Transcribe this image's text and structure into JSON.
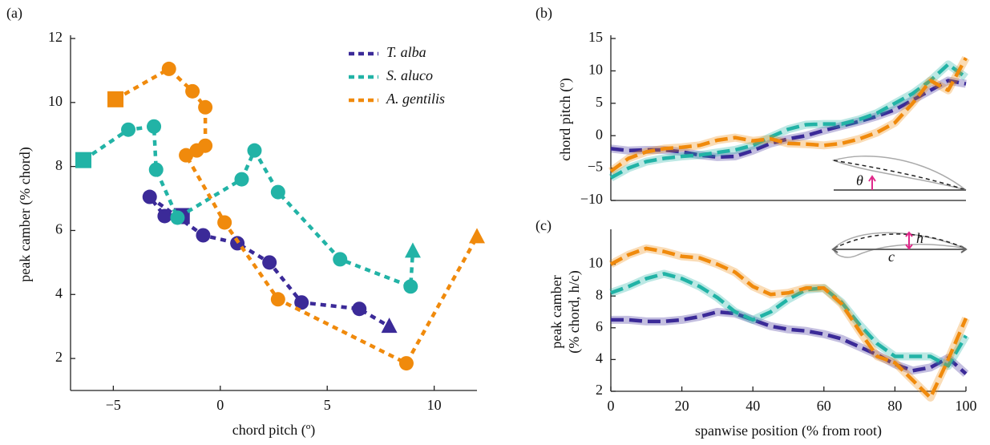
{
  "chart_data": [
    {
      "type": "scatter",
      "panel_label": "(a)",
      "xlabel": "chord pitch (º)",
      "ylabel": [
        "peak camber (% chord)"
      ],
      "xlim": [
        -7,
        12
      ],
      "ylim": [
        1,
        12
      ],
      "xticks": [
        {
          "value": -5,
          "label": "−5"
        },
        0,
        5,
        10
      ],
      "yticks": [
        2,
        4,
        6,
        8,
        10,
        12
      ],
      "legend": "upper right",
      "series": [
        {
          "name": "T. alba",
          "color": "#3b2a98",
          "x": [
            -1.8,
            -2.6,
            -3.3,
            -0.8,
            0.8,
            2.3,
            3.8,
            6.5,
            7.9
          ],
          "y": [
            6.45,
            6.45,
            7.05,
            5.85,
            5.6,
            5.0,
            3.75,
            3.55,
            3.0
          ],
          "marker": [
            "s",
            "o",
            "o",
            "o",
            "o",
            "o",
            "o",
            "o",
            "^"
          ]
        },
        {
          "name": "S. aluco",
          "color": "#22b3a6",
          "x": [
            -6.4,
            -4.3,
            -3.1,
            -3.0,
            -2.0,
            1.0,
            1.6,
            2.7,
            5.6,
            8.9,
            9.0
          ],
          "y": [
            8.2,
            9.15,
            9.25,
            7.9,
            6.4,
            7.6,
            8.5,
            7.2,
            5.1,
            4.25,
            5.35
          ],
          "marker": [
            "s",
            "o",
            "o",
            "o",
            "o",
            "o",
            "o",
            "o",
            "o",
            "o",
            "^"
          ]
        },
        {
          "name": "A. gentilis",
          "color": "#f08a0c",
          "x": [
            -4.9,
            -2.4,
            -1.3,
            -0.7,
            -0.7,
            -1.1,
            -1.6,
            0.2,
            2.7,
            8.7,
            12.0
          ],
          "y": [
            10.1,
            11.05,
            10.35,
            9.85,
            8.65,
            8.5,
            8.35,
            6.25,
            3.85,
            1.85,
            5.8
          ],
          "marker": [
            "s",
            "o",
            "o",
            "o",
            "o",
            "o",
            "o",
            "o",
            "o",
            "o",
            "^"
          ]
        }
      ]
    },
    {
      "type": "line",
      "panel_label": "(b)",
      "ylabel": [
        "chord pitch (º)"
      ],
      "annotations": [
        "θ"
      ],
      "xlim": [
        0,
        100
      ],
      "ylim": [
        -10,
        15
      ],
      "yticks": [
        {
          "value": -10,
          "label": "−10"
        },
        {
          "value": -5,
          "label": "−5"
        },
        0,
        5,
        10,
        15
      ],
      "x": [
        0,
        5,
        10,
        15,
        20,
        25,
        30,
        35,
        40,
        45,
        50,
        55,
        60,
        65,
        70,
        75,
        80,
        85,
        90,
        95,
        100
      ],
      "series": [
        {
          "name": "T. alba",
          "color": "#3b2a98",
          "values": [
            -2,
            -2.3,
            -2.2,
            -2.2,
            -2.5,
            -3,
            -3.3,
            -3.2,
            -2.3,
            -1.2,
            -0.5,
            0,
            0.8,
            1.5,
            2.2,
            3,
            4,
            5.5,
            7,
            8.5,
            8
          ]
        },
        {
          "name": "S. aluco",
          "color": "#22b3a6",
          "values": [
            -6.5,
            -5,
            -4,
            -3.5,
            -3.2,
            -3,
            -2.6,
            -2.2,
            -1.5,
            -0.2,
            1,
            1.7,
            1.8,
            1.8,
            2.5,
            3.5,
            5,
            6.5,
            8.5,
            11,
            9
          ]
        },
        {
          "name": "A. gentilis",
          "color": "#f08a0c",
          "values": [
            -5.5,
            -3.5,
            -2.5,
            -2,
            -1.8,
            -1.5,
            -0.7,
            -0.3,
            -0.8,
            -0.5,
            -1.2,
            -1.3,
            -1.5,
            -1.2,
            -0.5,
            0.5,
            2,
            5,
            8.5,
            7,
            12
          ]
        }
      ]
    },
    {
      "type": "line",
      "panel_label": "(c)",
      "xlabel": "spanwise position (% from root)",
      "ylabel": [
        "peak camber",
        "(% chord, h/c)"
      ],
      "annotations": [
        "h",
        "c"
      ],
      "xlim": [
        0,
        100
      ],
      "ylim": [
        2,
        12
      ],
      "xticks": [
        0,
        20,
        40,
        60,
        80,
        100
      ],
      "yticks": [
        2,
        4,
        6,
        8,
        10
      ],
      "x": [
        0,
        5,
        10,
        15,
        20,
        25,
        30,
        35,
        40,
        45,
        50,
        55,
        60,
        65,
        70,
        75,
        80,
        85,
        90,
        95,
        100
      ],
      "series": [
        {
          "name": "T. alba",
          "color": "#3b2a98",
          "values": [
            6.5,
            6.5,
            6.4,
            6.4,
            6.5,
            6.7,
            7.0,
            6.9,
            6.5,
            6.1,
            5.9,
            5.8,
            5.6,
            5.3,
            4.8,
            4.3,
            3.7,
            3.3,
            3.5,
            4.1,
            3.1
          ]
        },
        {
          "name": "S. aluco",
          "color": "#22b3a6",
          "values": [
            8.2,
            8.6,
            9.1,
            9.4,
            9.1,
            8.6,
            7.9,
            7.0,
            6.5,
            7.0,
            7.8,
            8.4,
            8.5,
            7.6,
            6.2,
            5.0,
            4.2,
            4.2,
            4.2,
            3.6,
            5.5
          ]
        },
        {
          "name": "A. gentilis",
          "color": "#f08a0c",
          "values": [
            10,
            10.6,
            11.0,
            10.8,
            10.5,
            10.4,
            10.0,
            9.5,
            8.6,
            8.1,
            8.2,
            8.5,
            8.5,
            7.5,
            5.8,
            4.2,
            3.8,
            2.7,
            1.6,
            4,
            6.6
          ]
        }
      ]
    }
  ]
}
